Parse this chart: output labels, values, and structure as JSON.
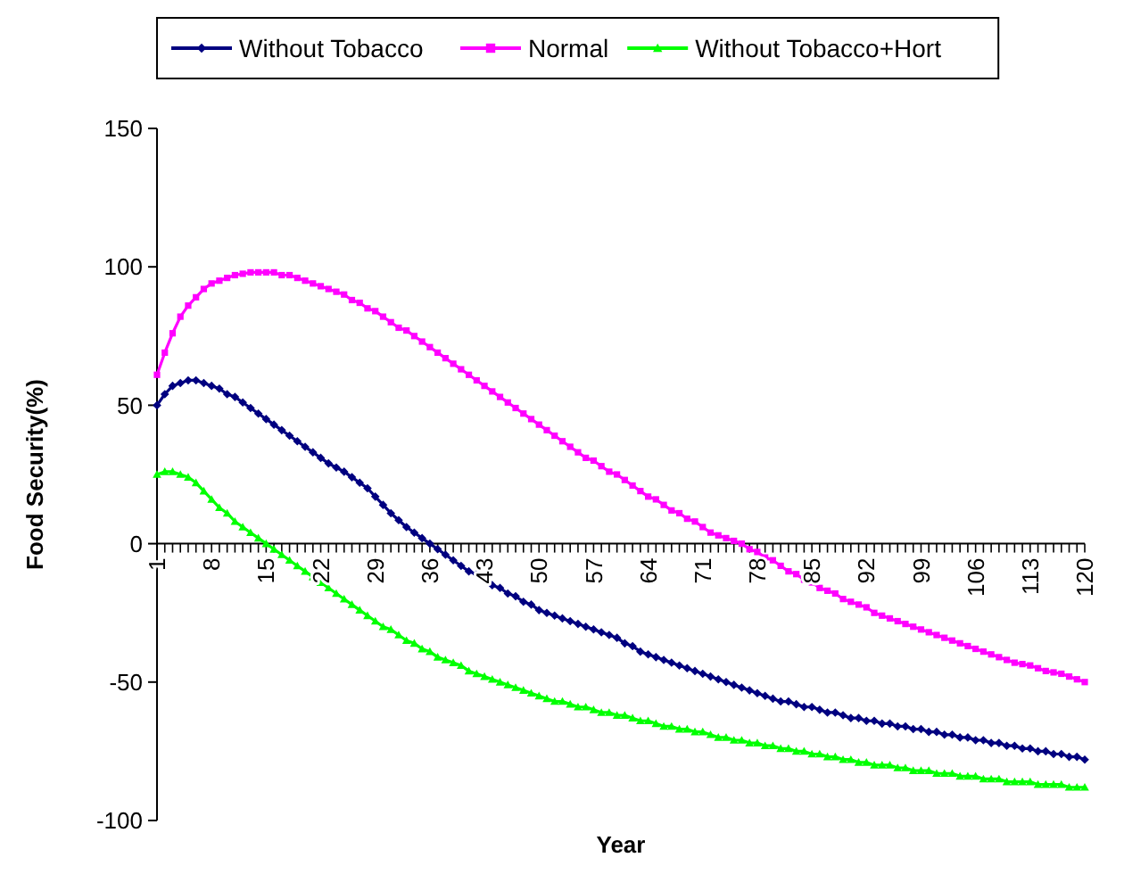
{
  "chart_data": {
    "type": "line",
    "xlabel": "Year",
    "ylabel": "Food Security(%)",
    "legend": "top",
    "grid": false,
    "categories": [
      "1",
      null,
      null,
      null,
      null,
      null,
      null,
      "8",
      null,
      null,
      null,
      null,
      null,
      null,
      "15",
      null,
      null,
      null,
      null,
      null,
      null,
      "22",
      null,
      null,
      null,
      null,
      null,
      null,
      "29",
      null,
      null,
      null,
      null,
      null,
      null,
      "36",
      null,
      null,
      null,
      null,
      null,
      null,
      "43",
      null,
      null,
      null,
      null,
      null,
      null,
      "50",
      null,
      null,
      null,
      null,
      null,
      null,
      "57",
      null,
      null,
      null,
      null,
      null,
      null,
      "64",
      null,
      null,
      null,
      null,
      null,
      null,
      "71",
      null,
      null,
      null,
      null,
      null,
      null,
      "78",
      null,
      null,
      null,
      null,
      null,
      null,
      "85",
      null,
      null,
      null,
      null,
      null,
      null,
      "92",
      null,
      null,
      null,
      null,
      null,
      null,
      "99",
      null,
      null,
      null,
      null,
      null,
      null,
      "106",
      null,
      null,
      null,
      null,
      null,
      null,
      "113",
      null,
      null,
      null,
      null,
      null,
      null,
      "120"
    ],
    "ylim": [
      -100,
      150
    ],
    "yticks": [
      -100,
      -50,
      0,
      50,
      100,
      150
    ],
    "series": [
      {
        "name": "Without Tobacco",
        "color": "#000080",
        "marker": "diamond",
        "values": [
          50,
          54,
          57,
          58,
          59,
          59,
          58,
          57,
          56,
          54,
          53,
          51,
          49,
          47,
          45,
          43,
          41,
          39,
          37,
          35,
          33,
          31,
          29,
          27.5,
          26,
          24,
          22,
          20,
          17,
          14,
          11,
          8.5,
          6,
          4,
          2,
          0,
          -2,
          -4,
          -6,
          -8,
          -10,
          -11,
          -13,
          -15,
          -16,
          -18,
          -19,
          -21,
          -22,
          -24,
          -25,
          -26,
          -27,
          -28,
          -29,
          -30,
          -31,
          -32,
          -33,
          -34,
          -36,
          -37,
          -39,
          -40,
          -41,
          -42,
          -43,
          -44,
          -45,
          -46,
          -47,
          -48,
          -49,
          -50,
          -51,
          -52,
          -53,
          -54,
          -55,
          -56,
          -57,
          -57,
          -58,
          -59,
          -59,
          -60,
          -61,
          -61,
          -62,
          -63,
          -63,
          -64,
          -64,
          -65,
          -65,
          -66,
          -66,
          -67,
          -67,
          -68,
          -68,
          -69,
          -69,
          -70,
          -70,
          -71,
          -71,
          -72,
          -72,
          -73,
          -73,
          -74,
          -74,
          -75,
          -75,
          -76,
          -76,
          -77,
          -77,
          -78
        ]
      },
      {
        "name": "Normal",
        "color": "#ff00ff",
        "marker": "square",
        "values": [
          61,
          69,
          76,
          82,
          86,
          89,
          92,
          94,
          95,
          96,
          97,
          97.5,
          98,
          98,
          98,
          98,
          97,
          97,
          96,
          95,
          94,
          93,
          92,
          91,
          90,
          88,
          87,
          85,
          84,
          82,
          80,
          78,
          77,
          75,
          73,
          71,
          69,
          67,
          65,
          63,
          61,
          59,
          57,
          55,
          53,
          51,
          49,
          47,
          45,
          43,
          41,
          39,
          37,
          35,
          33,
          31,
          30,
          28,
          26,
          25,
          23,
          21,
          19,
          17,
          16,
          14,
          12,
          11,
          9,
          8,
          6,
          4,
          3,
          2,
          1,
          0,
          -2,
          -3,
          -5,
          -6,
          -8,
          -10,
          -11,
          -13,
          -14,
          -16,
          -17,
          -18,
          -20,
          -21,
          -22,
          -23,
          -25,
          -26,
          -27,
          -28,
          -29,
          -30,
          -31,
          -32,
          -33,
          -34,
          -35,
          -36,
          -37,
          -38,
          -39,
          -40,
          -41,
          -42,
          -43,
          -43.5,
          -44,
          -45,
          -46,
          -46.5,
          -47,
          -48,
          -49,
          -50
        ]
      },
      {
        "name": "Without Tobacco+Hort",
        "color": "#00ff00",
        "marker": "triangle",
        "values": [
          25,
          26,
          26,
          25,
          24,
          22,
          19,
          16,
          13,
          11,
          8,
          6,
          4,
          2,
          0,
          -2,
          -4,
          -6,
          -8,
          -10,
          -12,
          -14,
          -16,
          -18,
          -20,
          -22,
          -24,
          -26,
          -28,
          -30,
          -31,
          -33,
          -35,
          -36,
          -38,
          -39,
          -41,
          -42,
          -43,
          -44,
          -46,
          -47,
          -48,
          -49,
          -50,
          -51,
          -52,
          -53,
          -54,
          -55,
          -56,
          -57,
          -57,
          -58,
          -59,
          -59,
          -60,
          -61,
          -61,
          -62,
          -62,
          -63,
          -64,
          -64,
          -65,
          -66,
          -66,
          -67,
          -67,
          -68,
          -68,
          -69,
          -70,
          -70,
          -71,
          -71,
          -72,
          -72,
          -73,
          -73,
          -74,
          -74,
          -75,
          -75,
          -76,
          -76,
          -77,
          -77,
          -78,
          -78,
          -79,
          -79,
          -80,
          -80,
          -80,
          -81,
          -81,
          -82,
          -82,
          -82,
          -83,
          -83,
          -83,
          -84,
          -84,
          -84,
          -85,
          -85,
          -85,
          -86,
          -86,
          -86,
          -86,
          -87,
          -87,
          -87,
          -87,
          -88,
          -88,
          -88
        ]
      }
    ]
  }
}
